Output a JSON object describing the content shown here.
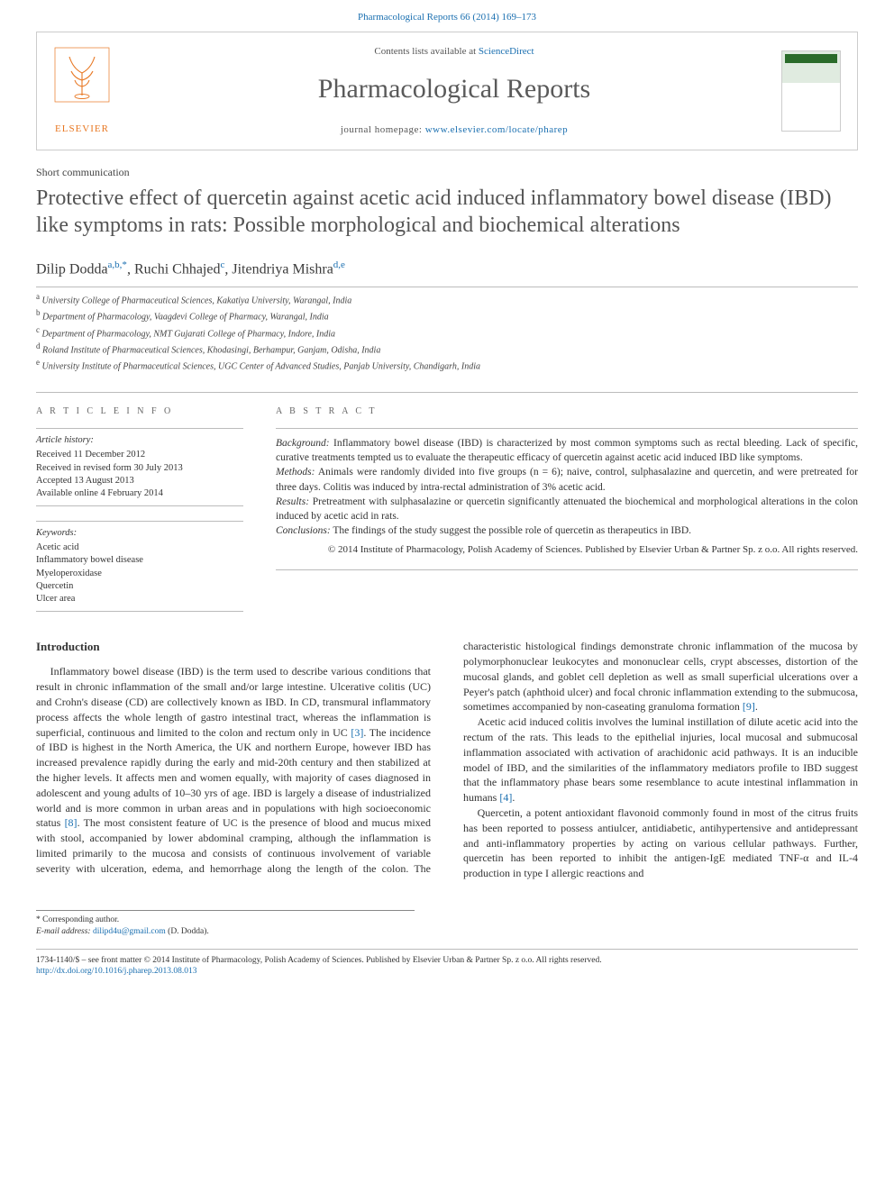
{
  "header": {
    "citation": "Pharmacological Reports 66 (2014) 169–173",
    "contents_label": "Contents lists available at",
    "contents_link": "ScienceDirect",
    "journal_name": "Pharmacological Reports",
    "homepage_label": "journal homepage:",
    "homepage_url": "www.elsevier.com/locate/pharep",
    "publisher": "ELSEVIER"
  },
  "article": {
    "type": "Short communication",
    "title": "Protective effect of quercetin against acetic acid induced inflammatory bowel disease (IBD) like symptoms in rats: Possible morphological and biochemical alterations",
    "authors_html": "Dilip Dodda",
    "author1": {
      "name": "Dilip Dodda",
      "sup": "a,b,*"
    },
    "author2": {
      "name": "Ruchi Chhajed",
      "sup": "c"
    },
    "author3": {
      "name": "Jitendriya Mishra",
      "sup": "d,e"
    },
    "affiliations": {
      "a": "University College of Pharmaceutical Sciences, Kakatiya University, Warangal, India",
      "b": "Department of Pharmacology, Vaagdevi College of Pharmacy, Warangal, India",
      "c": "Department of Pharmacology, NMT Gujarati College of Pharmacy, Indore, India",
      "d": "Roland Institute of Pharmaceutical Sciences, Khodasingi, Berhampur, Ganjam, Odisha, India",
      "e": "University Institute of Pharmaceutical Sciences, UGC Center of Advanced Studies, Panjab University, Chandigarh, India"
    }
  },
  "info": {
    "header": "A R T I C L E   I N F O",
    "history_label": "Article history:",
    "received": "Received 11 December 2012",
    "revised": "Received in revised form 30 July 2013",
    "accepted": "Accepted 13 August 2013",
    "online": "Available online 4 February 2014",
    "keywords_label": "Keywords:",
    "keywords": [
      "Acetic acid",
      "Inflammatory bowel disease",
      "Myeloperoxidase",
      "Quercetin",
      "Ulcer area"
    ]
  },
  "abstract": {
    "header": "A B S T R A C T",
    "background_label": "Background:",
    "background": "Inflammatory bowel disease (IBD) is characterized by most common symptoms such as rectal bleeding. Lack of specific, curative treatments tempted us to evaluate the therapeutic efficacy of quercetin against acetic acid induced IBD like symptoms.",
    "methods_label": "Methods:",
    "methods": "Animals were randomly divided into five groups (n = 6); naive, control, sulphasalazine and quercetin, and were pretreated for three days. Colitis was induced by intra-rectal administration of 3% acetic acid.",
    "results_label": "Results:",
    "results": "Pretreatment with sulphasalazine or quercetin significantly attenuated the biochemical and morphological alterations in the colon induced by acetic acid in rats.",
    "conclusions_label": "Conclusions:",
    "conclusions": "The findings of the study suggest the possible role of quercetin as therapeutics in IBD.",
    "copyright": "© 2014 Institute of Pharmacology, Polish Academy of Sciences. Published by Elsevier Urban & Partner Sp. z o.o. All rights reserved."
  },
  "body": {
    "intro_heading": "Introduction",
    "p1": "Inflammatory bowel disease (IBD) is the term used to describe various conditions that result in chronic inflammation of the small and/or large intestine. Ulcerative colitis (UC) and Crohn's disease (CD) are collectively known as IBD. In CD, transmural inflammatory process affects the whole length of gastro intestinal tract, whereas the inflammation is superficial, continuous and limited to the colon and rectum only in UC [3]. The incidence of IBD is highest in the North America, the UK and northern Europe, however IBD has increased prevalence rapidly during the early and mid-20th century and then stabilized at the higher levels. It affects men and women equally, with majority of cases diagnosed in adolescent and young adults of 10–30 yrs of age. IBD is largely a disease of industrialized world and is more common in urban areas and in populations with high socioeconomic status [8]. The most consistent feature of UC is the presence of blood and mucus mixed with stool, accompanied by lower abdominal cramping, although the inflammation is limited primarily to the mucosa and consists of continuous involvement of variable severity with ulceration, edema, and hemorrhage along the length of the colon. The characteristic histological findings demonstrate chronic inflammation of the mucosa by polymorphonuclear leukocytes and mononuclear cells, crypt abscesses, distortion of the mucosal glands, and goblet cell depletion as well as small superficial ulcerations over a Peyer's patch (aphthoid ulcer) and focal chronic inflammation extending to the submucosa, sometimes accompanied by non-caseating granuloma formation [9].",
    "p2": "Acetic acid induced colitis involves the luminal instillation of dilute acetic acid into the rectum of the rats. This leads to the epithelial injuries, local mucosal and submucosal inflammation associated with activation of arachidonic acid pathways. It is an inducible model of IBD, and the similarities of the inflammatory mediators profile to IBD suggest that the inflammatory phase bears some resemblance to acute intestinal inflammation in humans [4].",
    "p3": "Quercetin, a potent antioxidant flavonoid commonly found in most of the citrus fruits has been reported to possess antiulcer, antidiabetic, antihypertensive and antidepressant and anti-inflammatory properties by acting on various cellular pathways. Further, quercetin has been reported to inhibit the antigen-IgE mediated TNF-α and IL-4 production in type I allergic reactions and"
  },
  "corr": {
    "label": "* Corresponding author.",
    "email_label": "E-mail address:",
    "email": "dilipd4u@gmail.com",
    "email_suffix": "(D. Dodda)."
  },
  "footer": {
    "issn": "1734-1140/$ – see front matter © 2014 Institute of Pharmacology, Polish Academy of Sciences. Published by Elsevier Urban & Partner Sp. z o.o. All rights reserved.",
    "doi": "http://dx.doi.org/10.1016/j.pharep.2013.08.013"
  },
  "colors": {
    "link": "#1a6fb0",
    "elsevier_orange": "#e87722",
    "text": "#333333",
    "rule": "#bbbbbb"
  }
}
